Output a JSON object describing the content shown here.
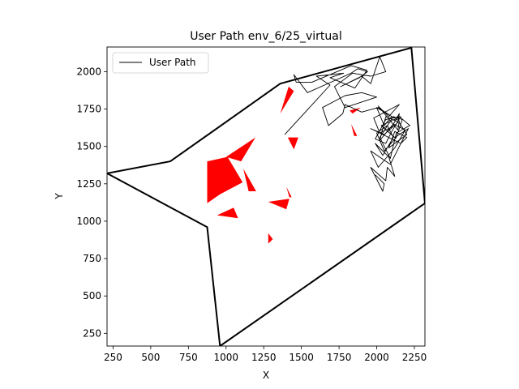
{
  "chart_data": {
    "type": "line",
    "title": "User Path env_6/25_virtual",
    "xlabel": "X",
    "ylabel": "Y",
    "xlim": [
      210,
      2320
    ],
    "ylim": [
      165,
      2165
    ],
    "xticks": [
      250,
      500,
      750,
      1000,
      1250,
      1500,
      1750,
      2000,
      2250
    ],
    "yticks": [
      250,
      500,
      750,
      1000,
      1250,
      1500,
      1750,
      2000
    ],
    "grid": false,
    "legend": {
      "placement": "top-left",
      "entries": [
        "User Path"
      ]
    },
    "colors": {
      "boundary": "#000000",
      "obstacles": "#ff0000",
      "path": "#000000"
    },
    "boundary": {
      "x": [
        210,
        630,
        1360,
        2230,
        2320,
        960,
        875,
        210
      ],
      "y": [
        1320,
        1400,
        1920,
        2160,
        1120,
        165,
        960,
        1320
      ]
    },
    "obstacles": [
      {
        "x": [
          875,
          1010,
          1110,
          960,
          875
        ],
        "y": [
          1400,
          1430,
          1260,
          1180,
          1120
        ]
      },
      {
        "x": [
          1000,
          1195,
          1100
        ],
        "y": [
          1430,
          1560,
          1400
        ]
      },
      {
        "x": [
          1115,
          1200,
          1150
        ],
        "y": [
          1350,
          1200,
          1200
        ]
      },
      {
        "x": [
          1360,
          1450,
          1415
        ],
        "y": [
          1720,
          1870,
          1900
        ]
      },
      {
        "x": [
          1410,
          1480,
          1450
        ],
        "y": [
          1560,
          1560,
          1480
        ]
      },
      {
        "x": [
          1280,
          1420,
          1400
        ],
        "y": [
          1130,
          1150,
          1080
        ]
      },
      {
        "x": [
          1400,
          1435,
          1420
        ],
        "y": [
          1230,
          1160,
          1160
        ]
      },
      {
        "x": [
          940,
          1080,
          1050
        ],
        "y": [
          1040,
          1020,
          1090
        ]
      },
      {
        "x": [
          1280,
          1310,
          1280
        ],
        "y": [
          920,
          880,
          850
        ]
      },
      {
        "x": [
          1820,
          1895,
          1840
        ],
        "y": [
          1740,
          1760,
          1720
        ]
      },
      {
        "x": [
          1830,
          1870,
          1850
        ],
        "y": [
          1650,
          1570,
          1570
        ]
      }
    ],
    "series": [
      {
        "name": "User Path",
        "x": [
          1390,
          1690,
          1600,
          1780,
          1690,
          1855,
          1935,
          1830,
          1570,
          1465,
          1450,
          1540,
          1720,
          1830,
          1875,
          1940,
          1885,
          1760,
          1900,
          1960,
          2020,
          2060,
          1960,
          1840,
          1720,
          1790,
          2000,
          1900,
          1790,
          1640,
          1680,
          1775,
          1790,
          1900,
          2010,
          2100,
          2050,
          2000,
          2150,
          2140,
          2010,
          2080,
          2150,
          1980,
          2020,
          2100,
          2150,
          2140,
          2050,
          1960,
          2160,
          2200,
          2120,
          2080,
          2200,
          2150,
          2060,
          2020,
          2110,
          2190,
          2120,
          2010,
          1960,
          2090,
          2210,
          2120,
          2030,
          2160,
          2100,
          2060,
          1990,
          2060,
          2150,
          2220,
          2130,
          2090,
          2020,
          2110,
          2170,
          2130,
          2050,
          2000,
          2070,
          2110,
          2040,
          1990,
          2080,
          2120,
          2070,
          2060,
          1960,
          2040,
          2050,
          1990
        ],
        "y": [
          1580,
          1910,
          1970,
          1990,
          1960,
          1890,
          2010,
          2040,
          1930,
          1930,
          1980,
          1860,
          1940,
          1990,
          2020,
          2000,
          1960,
          1900,
          1970,
          1920,
          2100,
          2000,
          1970,
          1990,
          1900,
          1760,
          1830,
          1860,
          1840,
          1760,
          1640,
          1720,
          1780,
          1730,
          1760,
          1700,
          1640,
          1760,
          1670,
          1610,
          1770,
          1700,
          1780,
          1690,
          1590,
          1630,
          1720,
          1660,
          1580,
          1620,
          1520,
          1560,
          1600,
          1490,
          1580,
          1660,
          1700,
          1540,
          1650,
          1610,
          1490,
          1360,
          1470,
          1380,
          1620,
          1560,
          1640,
          1700,
          1600,
          1520,
          1550,
          1680,
          1700,
          1640,
          1590,
          1420,
          1560,
          1700,
          1680,
          1560,
          1470,
          1590,
          1640,
          1560,
          1440,
          1520,
          1430,
          1300,
          1360,
          1270,
          1360,
          1200,
          1250,
          1310
        ]
      }
    ]
  }
}
